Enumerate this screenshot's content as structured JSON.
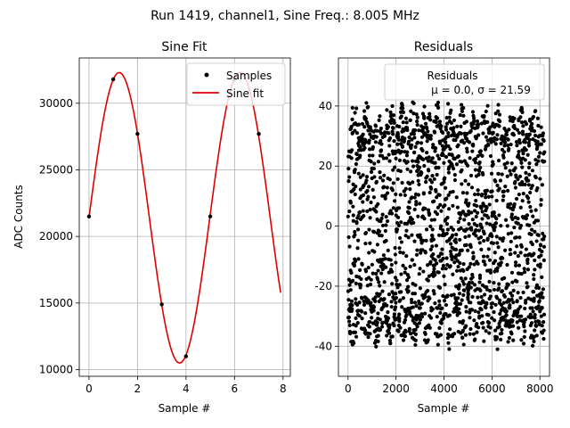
{
  "suptitle": "Run 1419, channel1, Sine Freq.: 8.005 MHz",
  "colors": {
    "samples": "#000000",
    "fit": "#e00000",
    "residuals": "#000000",
    "grid": "#b0b0b0",
    "legend_text_sub": "#000000"
  },
  "chart_data": [
    {
      "type": "line",
      "title": "Sine Fit",
      "xlabel": "Sample #",
      "ylabel": "ADC Counts",
      "xlim": [
        -0.4,
        8.3
      ],
      "ylim": [
        9500,
        33400
      ],
      "xticks": [
        0,
        2,
        4,
        6,
        8
      ],
      "yticks": [
        10000,
        15000,
        20000,
        25000,
        30000
      ],
      "grid": true,
      "legend": {
        "placement": "top-right",
        "entries": [
          "Samples",
          "Sine fit"
        ]
      },
      "series": [
        {
          "name": "Samples",
          "style": "points",
          "x": [
            0,
            1,
            2,
            3,
            4,
            5,
            6,
            7
          ],
          "y": [
            21500,
            31800,
            27700,
            14900,
            11000,
            21500,
            31800,
            27700
          ]
        },
        {
          "name": "Sine fit",
          "style": "line",
          "model": {
            "offset": 21400,
            "amplitude": 10900,
            "period": 4.98,
            "phase_x": 0.0,
            "x_start": 0,
            "x_end": 7.9
          }
        }
      ]
    },
    {
      "type": "scatter",
      "title": "Residuals",
      "xlabel": "Sample #",
      "ylabel": "",
      "xlim": [
        -400,
        8400
      ],
      "ylim": [
        -50,
        56
      ],
      "xticks": [
        0,
        2000,
        4000,
        6000,
        8000
      ],
      "yticks": [
        -40,
        -20,
        0,
        20,
        40
      ],
      "grid": true,
      "legend": {
        "placement": "top-right",
        "entries": [
          "Residuals"
        ],
        "annotation": "μ = 0.0, σ = 21.59"
      },
      "series": [
        {
          "name": "Residuals",
          "style": "points",
          "n_points": 8192,
          "envelope": {
            "center": 0,
            "amplitude": 38,
            "spread": 8,
            "beat_period": 1000,
            "outliers_max": 50,
            "outliers_min": -46
          }
        }
      ]
    }
  ]
}
